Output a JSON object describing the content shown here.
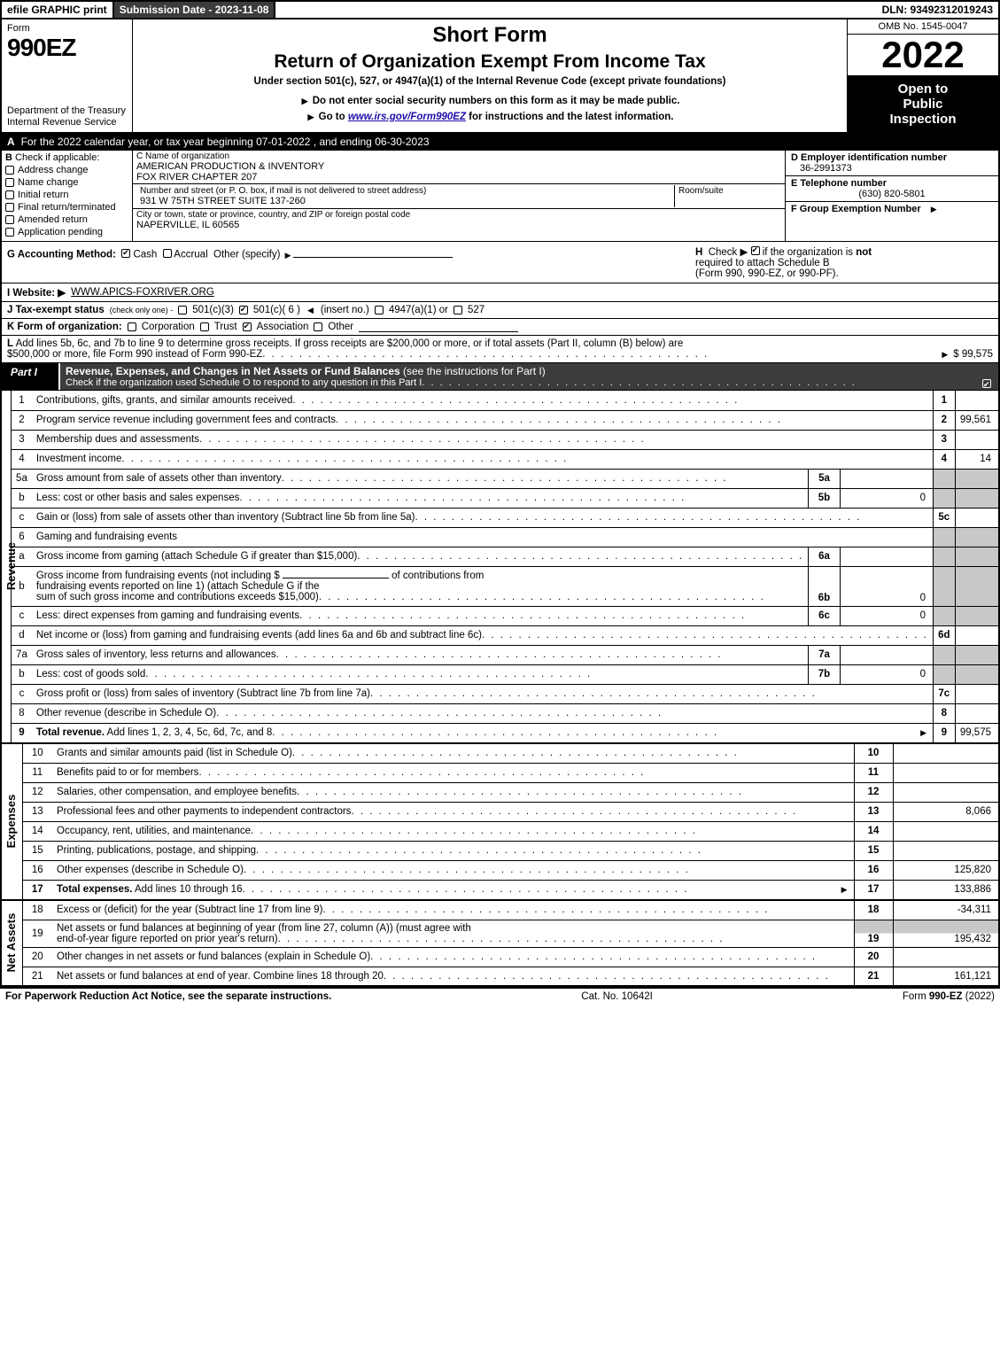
{
  "colors": {
    "black": "#000000",
    "white": "#ffffff",
    "darkgrey": "#3c3c3c",
    "lightgrey": "#c8c8c8",
    "link": "#1a0dab"
  },
  "topbar": {
    "efile": "efile GRAPHIC print",
    "submission": "Submission Date - 2023-11-08",
    "dln": "DLN: 93492312019243"
  },
  "header": {
    "form_label": "Form",
    "form_number": "990EZ",
    "dept": "Department of the Treasury\nInternal Revenue Service",
    "short_form": "Short Form",
    "title": "Return of Organization Exempt From Income Tax",
    "under": "Under section 501(c), 527, or 4947(a)(1) of the Internal Revenue Code (except private foundations)",
    "note1_arrow": "▶",
    "note1": "Do not enter social security numbers on this form as it may be made public.",
    "note2_arrow": "▶",
    "note2_pre": "Go to ",
    "note2_link": "www.irs.gov/Form990EZ",
    "note2_post": " for instructions and the latest information.",
    "omb": "OMB No. 1545-0047",
    "year": "2022",
    "open1": "Open to",
    "open2": "Public",
    "open3": "Inspection"
  },
  "row_a": {
    "letter": "A",
    "text": "For the 2022 calendar year, or tax year beginning 07-01-2022 , and ending 06-30-2023"
  },
  "col_b": {
    "letter": "B",
    "label": "Check if applicable:",
    "items": [
      {
        "label": "Address change",
        "checked": false
      },
      {
        "label": "Name change",
        "checked": false
      },
      {
        "label": "Initial return",
        "checked": false
      },
      {
        "label": "Final return/terminated",
        "checked": false
      },
      {
        "label": "Amended return",
        "checked": false
      },
      {
        "label": "Application pending",
        "checked": false
      }
    ]
  },
  "col_c": {
    "name_lbl": "C Name of organization",
    "name1": "AMERICAN PRODUCTION & INVENTORY",
    "name2": "FOX RIVER CHAPTER 207",
    "street_lbl": "Number and street (or P. O. box, if mail is not delivered to street address)",
    "room_lbl": "Room/suite",
    "street": "931 W 75TH STREET SUITE 137-260",
    "city_lbl": "City or town, state or province, country, and ZIP or foreign postal code",
    "city": "NAPERVILLE, IL  60565"
  },
  "col_def": {
    "d_lbl": "D Employer identification number",
    "d_val": "36-2991373",
    "e_lbl": "E Telephone number",
    "e_val": "(630) 820-5801",
    "f_lbl": "F Group Exemption Number",
    "f_arrow": "▶"
  },
  "g": {
    "label": "G Accounting Method:",
    "cash": "Cash",
    "accrual": "Accrual",
    "other": "Other (specify)",
    "cash_checked": true,
    "accrual_checked": false
  },
  "h": {
    "letter": "H",
    "text1": "Check ▶",
    "text2": "if the organization is ",
    "not": "not",
    "text3": "required to attach Schedule B",
    "text4": "(Form 990, 990-EZ, or 990-PF).",
    "checked": true
  },
  "i": {
    "label": "I Website: ▶",
    "val": "WWW.APICS-FOXRIVER.ORG"
  },
  "j": {
    "label": "J Tax-exempt status",
    "sub": "(check only one) -",
    "o1": "501(c)(3)",
    "o2": "501(c)( 6 )",
    "o2_checked": true,
    "o2_insert": "(insert no.)",
    "o3": "4947(a)(1) or",
    "o4": "527"
  },
  "k": {
    "label": "K Form of organization:",
    "corp": "Corporation",
    "trust": "Trust",
    "assoc": "Association",
    "assoc_checked": true,
    "other": "Other"
  },
  "l": {
    "letter": "L",
    "text1": "Add lines 5b, 6c, and 7b to line 9 to determine gross receipts. If gross receipts are $200,000 or more, or if total assets (Part II, column (B) below) are",
    "text2": "$500,000 or more, file Form 990 instead of Form 990-EZ",
    "amount": "$ 99,575"
  },
  "part1": {
    "tab": "Part I",
    "title": "Revenue, Expenses, and Changes in Net Assets or Fund Balances",
    "title_sub": "(see the instructions for Part I)",
    "check_line": "Check if the organization used Schedule O to respond to any question in this Part I",
    "checked": true
  },
  "sections": {
    "revenue_label": "Revenue",
    "expenses_label": "Expenses",
    "netassets_label": "Net Assets"
  },
  "lines": [
    {
      "n": "1",
      "desc": "Contributions, gifts, grants, and similar amounts received",
      "box": "1",
      "val": ""
    },
    {
      "n": "2",
      "desc": "Program service revenue including government fees and contracts",
      "box": "2",
      "val": "99,561"
    },
    {
      "n": "3",
      "desc": "Membership dues and assessments",
      "box": "3",
      "val": ""
    },
    {
      "n": "4",
      "desc": "Investment income",
      "box": "4",
      "val": "14"
    },
    {
      "n": "5a",
      "desc": "Gross amount from sale of assets other than inventory",
      "mini": "5a",
      "mval": "",
      "grey_box": true
    },
    {
      "n": "b",
      "desc": "Less: cost or other basis and sales expenses",
      "mini": "5b",
      "mval": "0",
      "grey_box": true
    },
    {
      "n": "c",
      "desc": "Gain or (loss) from sale of assets other than inventory (Subtract line 5b from line 5a)",
      "box": "5c",
      "val": ""
    },
    {
      "n": "6",
      "desc": "Gaming and fundraising events",
      "no_box": true,
      "grey_box": true
    },
    {
      "n": "a",
      "desc": "Gross income from gaming (attach Schedule G if greater than $15,000)",
      "mini": "6a",
      "mval": "",
      "grey_box": true
    },
    {
      "n": "b",
      "desc_multi": [
        "Gross income from fundraising events (not including $",
        "of contributions from",
        "fundraising events reported on line 1) (attach Schedule G if the",
        "sum of such gross income and contributions exceeds $15,000)"
      ],
      "mini": "6b",
      "mval": "0",
      "grey_box": true,
      "tall": true
    },
    {
      "n": "c",
      "desc": "Less: direct expenses from gaming and fundraising events",
      "mini": "6c",
      "mval": "0",
      "grey_box": true
    },
    {
      "n": "d",
      "desc": "Net income or (loss) from gaming and fundraising events (add lines 6a and 6b and subtract line 6c)",
      "box": "6d",
      "val": ""
    },
    {
      "n": "7a",
      "desc": "Gross sales of inventory, less returns and allowances",
      "mini": "7a",
      "mval": "",
      "grey_box": true
    },
    {
      "n": "b",
      "desc": "Less: cost of goods sold",
      "mini": "7b",
      "mval": "0",
      "grey_box": true
    },
    {
      "n": "c",
      "desc": "Gross profit or (loss) from sales of inventory (Subtract line 7b from line 7a)",
      "box": "7c",
      "val": ""
    },
    {
      "n": "8",
      "desc": "Other revenue (describe in Schedule O)",
      "box": "8",
      "val": ""
    },
    {
      "n": "9",
      "desc": "Total revenue. Add lines 1, 2, 3, 4, 5c, 6d, 7c, and 8",
      "box": "9",
      "val": "99,575",
      "bold": true,
      "arrow": true
    }
  ],
  "exp_lines": [
    {
      "n": "10",
      "desc": "Grants and similar amounts paid (list in Schedule O)",
      "box": "10",
      "val": ""
    },
    {
      "n": "11",
      "desc": "Benefits paid to or for members",
      "box": "11",
      "val": ""
    },
    {
      "n": "12",
      "desc": "Salaries, other compensation, and employee benefits",
      "box": "12",
      "val": ""
    },
    {
      "n": "13",
      "desc": "Professional fees and other payments to independent contractors",
      "box": "13",
      "val": "8,066"
    },
    {
      "n": "14",
      "desc": "Occupancy, rent, utilities, and maintenance",
      "box": "14",
      "val": ""
    },
    {
      "n": "15",
      "desc": "Printing, publications, postage, and shipping",
      "box": "15",
      "val": ""
    },
    {
      "n": "16",
      "desc": "Other expenses (describe in Schedule O)",
      "box": "16",
      "val": "125,820"
    },
    {
      "n": "17",
      "desc": "Total expenses. Add lines 10 through 16",
      "box": "17",
      "val": "133,886",
      "bold": true,
      "arrow": true
    }
  ],
  "na_lines": [
    {
      "n": "18",
      "desc": "Excess or (deficit) for the year (Subtract line 17 from line 9)",
      "box": "18",
      "val": "-34,311"
    },
    {
      "n": "19",
      "desc_multi": [
        "Net assets or fund balances at beginning of year (from line 27, column (A)) (must agree with",
        "end-of-year figure reported on prior year's return)"
      ],
      "box": "19",
      "val": "195,432",
      "tall": true,
      "grey_first": true
    },
    {
      "n": "20",
      "desc": "Other changes in net assets or fund balances (explain in Schedule O)",
      "box": "20",
      "val": ""
    },
    {
      "n": "21",
      "desc": "Net assets or fund balances at end of year. Combine lines 18 through 20",
      "box": "21",
      "val": "161,121"
    }
  ],
  "footer": {
    "left": "For Paperwork Reduction Act Notice, see the separate instructions.",
    "mid": "Cat. No. 10642I",
    "right_pre": "Form ",
    "right_bold": "990-EZ",
    "right_post": " (2022)"
  }
}
